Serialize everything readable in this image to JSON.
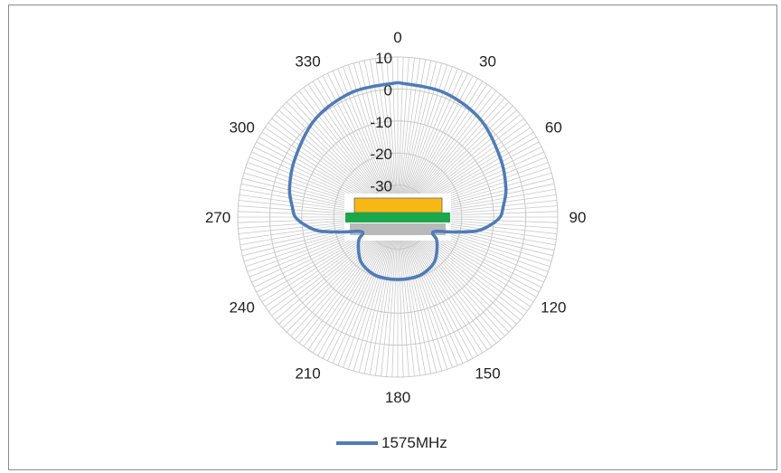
{
  "chart_data": {
    "type": "polar-line",
    "angle_labels": [
      "0",
      "30",
      "60",
      "90",
      "120",
      "150",
      "180",
      "210",
      "240",
      "270",
      "300",
      "330"
    ],
    "radial_tick_labels": [
      "10",
      "0",
      "-10",
      "-20",
      "-30"
    ],
    "r_range": [
      -40,
      10
    ],
    "grid": true,
    "legend_position": "bottom",
    "series": [
      {
        "name": "1575MHz",
        "color": "#4f7bb8",
        "angles": [
          0,
          20,
          40,
          60,
          75,
          85,
          90,
          95,
          100,
          105,
          110,
          115,
          120,
          130,
          140,
          150,
          160,
          170,
          180,
          190,
          200,
          210,
          220,
          230,
          240,
          245,
          250,
          255,
          260,
          265,
          270,
          275,
          285,
          300,
          320,
          340,
          360
        ],
        "values": [
          2,
          1.5,
          0,
          -3,
          -5,
          -7,
          -8,
          -11,
          -15,
          -22,
          -27,
          -28,
          -26,
          -24,
          -22,
          -21,
          -20.5,
          -20.5,
          -20.5,
          -20.5,
          -20.5,
          -21,
          -22,
          -24,
          -26,
          -28,
          -27,
          -22,
          -15,
          -11,
          -8,
          -7,
          -5,
          -3,
          0,
          1.5,
          2
        ]
      }
    ]
  },
  "legend": {
    "label": "1575MHz"
  },
  "colors": {
    "series": "#4f7bb8",
    "grid": "#c8c8c8",
    "board_gold": "#f7b815",
    "board_green": "#1aa84a",
    "board_gray": "#b9b9b9"
  },
  "device_icon": "antenna-stack-icon"
}
